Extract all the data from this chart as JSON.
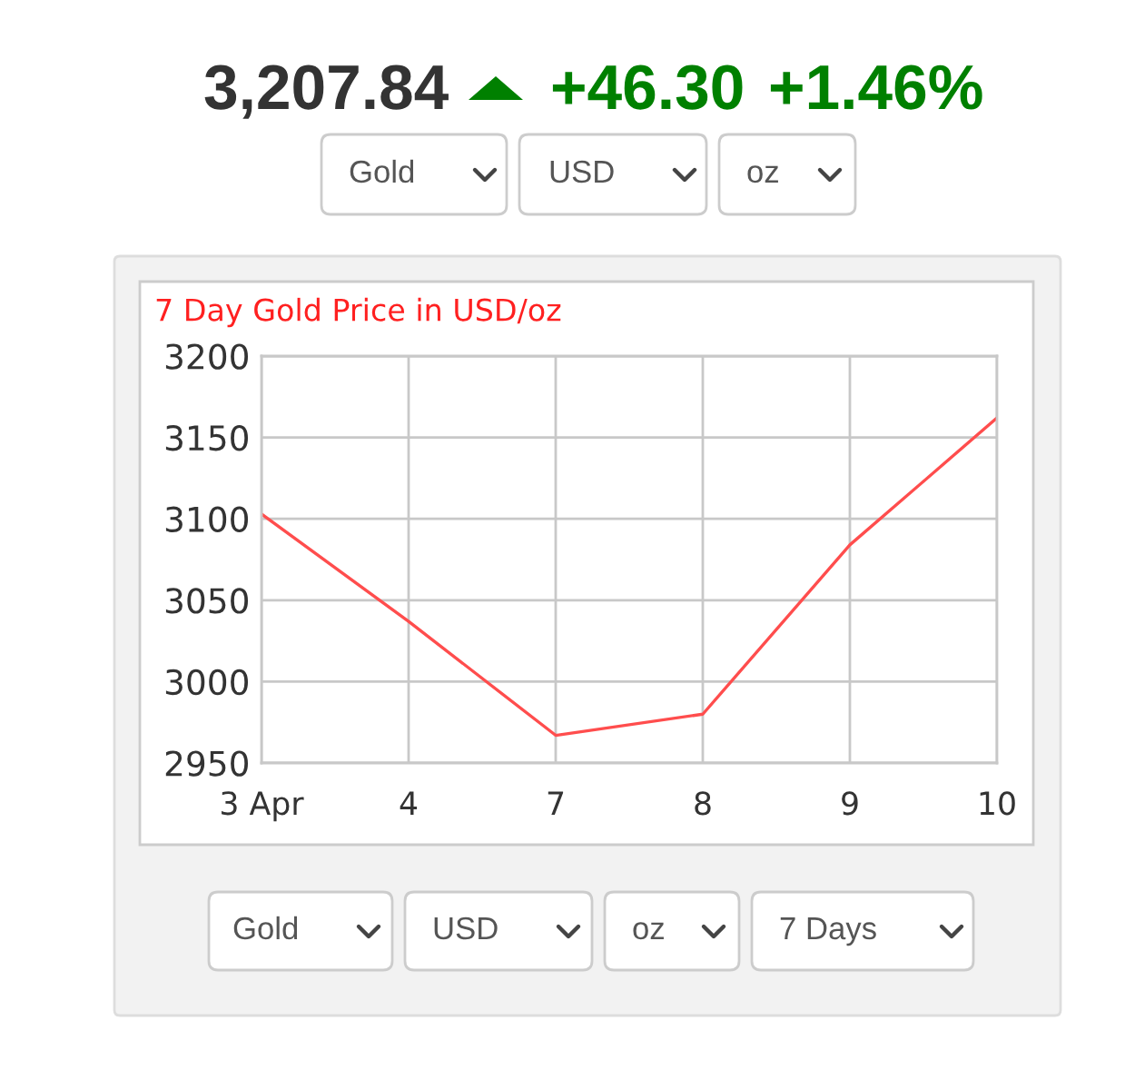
{
  "chart_data": {
    "type": "line",
    "title": "7 Day Gold Price in USD/oz",
    "categories": [
      "3 Apr",
      "4",
      "7",
      "8",
      "9",
      "10"
    ],
    "series": [
      {
        "color": "#ff4d4d",
        "values": [
          3103,
          3037,
          2967,
          2980,
          3084,
          3162
        ]
      }
    ],
    "ylim": [
      2950,
      3200
    ],
    "yticks": [
      2950,
      3000,
      3050,
      3100,
      3150,
      3200
    ],
    "grid": true,
    "annotations": [
      "3,207.84",
      "+46.30",
      "+1.46%",
      "Gold",
      "USD",
      "oz",
      "Gold",
      "USD",
      "oz",
      "7 Days"
    ]
  }
}
